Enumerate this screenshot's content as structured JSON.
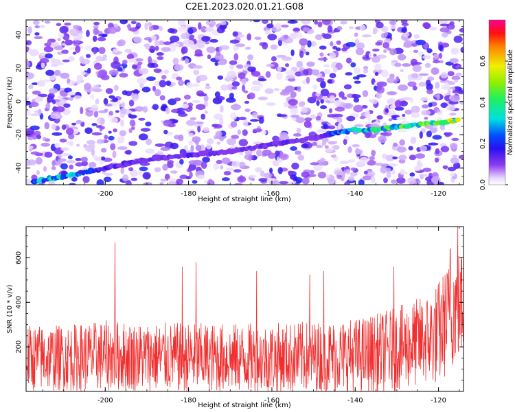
{
  "title": "C2E1.2023.020.01.21.G08",
  "chart_data": [
    {
      "type": "heatmap",
      "xlabel": "Height of straight line (km)",
      "ylabel": "Frequency (Hz)",
      "xlim": [
        -219,
        -114
      ],
      "ylim": [
        -50,
        49
      ],
      "xticks": [
        -200,
        -180,
        -160,
        -140,
        -120
      ],
      "yticks": [
        -40,
        -20,
        0,
        20,
        40
      ],
      "colorbar": {
        "label": "Normalized spectral amplitude",
        "range": [
          0,
          0.8
        ],
        "ticks": [
          0.0,
          0.2,
          0.4,
          0.6
        ]
      },
      "ridge": {
        "description_points_x": [
          -217,
          -210,
          -200,
          -190,
          -180,
          -170,
          -160,
          -150,
          -145,
          -140,
          -135,
          -130,
          -125,
          -120,
          -115
        ],
        "description_points_y": [
          -48,
          -45,
          -40,
          -35,
          -32,
          -30,
          -26,
          -22,
          -19,
          -17,
          -17,
          -15,
          -14,
          -13,
          -11
        ],
        "peak_amplitudes": [
          0.3,
          0.35,
          0.15,
          0.12,
          0.15,
          0.1,
          0.15,
          0.1,
          0.25,
          0.35,
          0.4,
          0.45,
          0.5,
          0.45,
          0.6
        ]
      }
    },
    {
      "type": "line",
      "xlabel": "Height of straight line (km)",
      "ylabel": "SNR (10 * v/v)",
      "xlim": [
        -219,
        -114
      ],
      "ylim": [
        0,
        740
      ],
      "xticks": [
        -200,
        -180,
        -160,
        -140,
        -120
      ],
      "yticks": [
        200,
        400,
        600
      ],
      "series": [
        {
          "color": "#f03030",
          "envelope_x": [
            -219,
            -210,
            -200,
            -190,
            -180,
            -170,
            -160,
            -150,
            -140,
            -135,
            -130,
            -125,
            -122,
            -120,
            -118,
            -116,
            -114
          ],
          "envelope_mean": [
            150,
            150,
            160,
            155,
            150,
            150,
            150,
            155,
            160,
            170,
            190,
            220,
            240,
            260,
            320,
            380,
            390
          ],
          "envelope_spread": [
            150,
            150,
            160,
            155,
            160,
            155,
            160,
            160,
            170,
            180,
            190,
            200,
            210,
            240,
            250,
            260,
            250
          ],
          "spikes": [
            [
              -197.7,
              670
            ],
            [
              -181.5,
              560
            ],
            [
              -178.2,
              580
            ],
            [
              -163.7,
              540
            ],
            [
              -150.9,
              525
            ],
            [
              -147.5,
              540
            ],
            [
              -130.7,
              560
            ],
            [
              -117.2,
              640
            ],
            [
              -115.4,
              740
            ]
          ]
        }
      ]
    }
  ]
}
